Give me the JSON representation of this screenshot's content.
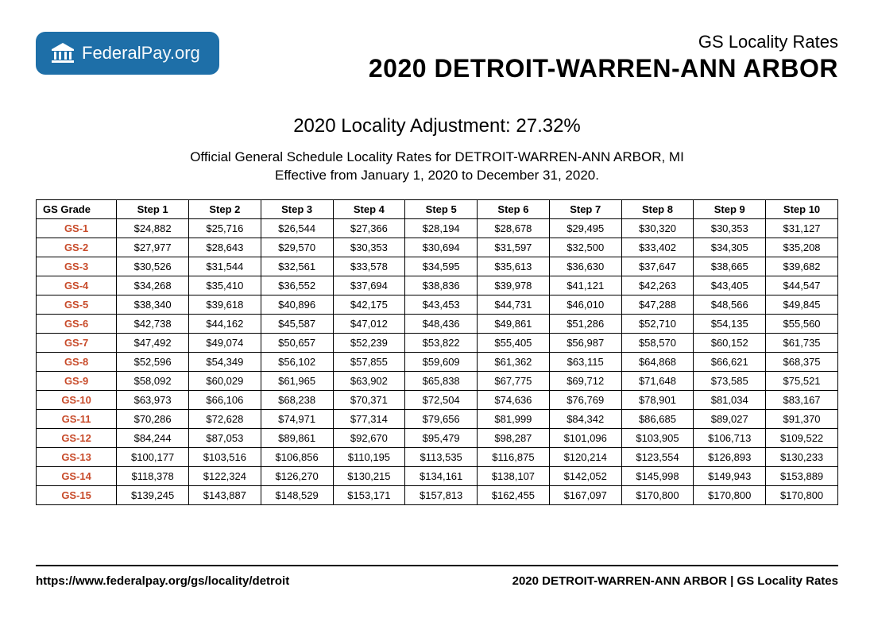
{
  "logo": {
    "name1": "Federal",
    "name2": "Pay.org"
  },
  "header": {
    "subtitle": "GS Locality Rates",
    "title": "2020 DETROIT-WARREN-ANN ARBOR"
  },
  "adjustment_line": "2020 Locality Adjustment: 27.32%",
  "description_line1": "Official General Schedule Locality Rates for DETROIT-WARREN-ANN ARBOR, MI",
  "description_line2": "Effective from January 1, 2020 to December 31, 2020.",
  "table": {
    "columns": [
      "GS Grade",
      "Step 1",
      "Step 2",
      "Step 3",
      "Step 4",
      "Step 5",
      "Step 6",
      "Step 7",
      "Step 8",
      "Step 9",
      "Step 10"
    ],
    "rows": [
      [
        "GS-1",
        "$24,882",
        "$25,716",
        "$26,544",
        "$27,366",
        "$28,194",
        "$28,678",
        "$29,495",
        "$30,320",
        "$30,353",
        "$31,127"
      ],
      [
        "GS-2",
        "$27,977",
        "$28,643",
        "$29,570",
        "$30,353",
        "$30,694",
        "$31,597",
        "$32,500",
        "$33,402",
        "$34,305",
        "$35,208"
      ],
      [
        "GS-3",
        "$30,526",
        "$31,544",
        "$32,561",
        "$33,578",
        "$34,595",
        "$35,613",
        "$36,630",
        "$37,647",
        "$38,665",
        "$39,682"
      ],
      [
        "GS-4",
        "$34,268",
        "$35,410",
        "$36,552",
        "$37,694",
        "$38,836",
        "$39,978",
        "$41,121",
        "$42,263",
        "$43,405",
        "$44,547"
      ],
      [
        "GS-5",
        "$38,340",
        "$39,618",
        "$40,896",
        "$42,175",
        "$43,453",
        "$44,731",
        "$46,010",
        "$47,288",
        "$48,566",
        "$49,845"
      ],
      [
        "GS-6",
        "$42,738",
        "$44,162",
        "$45,587",
        "$47,012",
        "$48,436",
        "$49,861",
        "$51,286",
        "$52,710",
        "$54,135",
        "$55,560"
      ],
      [
        "GS-7",
        "$47,492",
        "$49,074",
        "$50,657",
        "$52,239",
        "$53,822",
        "$55,405",
        "$56,987",
        "$58,570",
        "$60,152",
        "$61,735"
      ],
      [
        "GS-8",
        "$52,596",
        "$54,349",
        "$56,102",
        "$57,855",
        "$59,609",
        "$61,362",
        "$63,115",
        "$64,868",
        "$66,621",
        "$68,375"
      ],
      [
        "GS-9",
        "$58,092",
        "$60,029",
        "$61,965",
        "$63,902",
        "$65,838",
        "$67,775",
        "$69,712",
        "$71,648",
        "$73,585",
        "$75,521"
      ],
      [
        "GS-10",
        "$63,973",
        "$66,106",
        "$68,238",
        "$70,371",
        "$72,504",
        "$74,636",
        "$76,769",
        "$78,901",
        "$81,034",
        "$83,167"
      ],
      [
        "GS-11",
        "$70,286",
        "$72,628",
        "$74,971",
        "$77,314",
        "$79,656",
        "$81,999",
        "$84,342",
        "$86,685",
        "$89,027",
        "$91,370"
      ],
      [
        "GS-12",
        "$84,244",
        "$87,053",
        "$89,861",
        "$92,670",
        "$95,479",
        "$98,287",
        "$101,096",
        "$103,905",
        "$106,713",
        "$109,522"
      ],
      [
        "GS-13",
        "$100,177",
        "$103,516",
        "$106,856",
        "$110,195",
        "$113,535",
        "$116,875",
        "$120,214",
        "$123,554",
        "$126,893",
        "$130,233"
      ],
      [
        "GS-14",
        "$118,378",
        "$122,324",
        "$126,270",
        "$130,215",
        "$134,161",
        "$138,107",
        "$142,052",
        "$145,998",
        "$149,943",
        "$153,889"
      ],
      [
        "GS-15",
        "$139,245",
        "$143,887",
        "$148,529",
        "$153,171",
        "$157,813",
        "$162,455",
        "$167,097",
        "$170,800",
        "$170,800",
        "$170,800"
      ]
    ],
    "grade_color": "#c84b2a",
    "border_color": "#000000",
    "font_size": 13
  },
  "footer": {
    "left": "https://www.federalpay.org/gs/locality/detroit",
    "right": "2020 DETROIT-WARREN-ANN ARBOR | GS Locality Rates"
  }
}
